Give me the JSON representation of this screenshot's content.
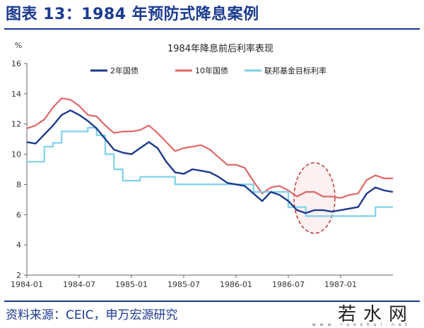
{
  "header": {
    "title": "图表 13：1984 年预防式降息案例"
  },
  "footer": {
    "source": "资料来源：CEIC，申万宏源研究",
    "watermark": "若水网",
    "watermark_sub": "www.ruoshui.net"
  },
  "colors": {
    "us2y": "#1c3a8e",
    "us10y": "#e06767",
    "fed": "#7dd1ea",
    "accent": "#1a3a8f",
    "highlight": "#c0292b"
  },
  "chart_data": {
    "type": "line",
    "title": "1984年降息前后利率表现",
    "ylabel": "%",
    "ylim": [
      2,
      16
    ],
    "yticks": [
      2,
      4,
      6,
      8,
      10,
      12,
      14,
      16
    ],
    "xlim": [
      "1984-01",
      "1987-07"
    ],
    "xticks": [
      "1984-01",
      "1984-07",
      "1985-01",
      "1985-07",
      "1986-01",
      "1986-07",
      "1987-01"
    ],
    "legend_position": "top",
    "grid": false,
    "annotation": {
      "type": "dashed-ellipse",
      "center": [
        "1986-10",
        7.1
      ],
      "note": "highlighted region"
    },
    "series": [
      {
        "name": "2年国债",
        "x": [
          "1984-01",
          "1984-02",
          "1984-03",
          "1984-04",
          "1984-05",
          "1984-06",
          "1984-07",
          "1984-08",
          "1984-09",
          "1984-10",
          "1984-11",
          "1984-12",
          "1985-01",
          "1985-02",
          "1985-03",
          "1985-04",
          "1985-05",
          "1985-06",
          "1985-07",
          "1985-08",
          "1985-09",
          "1985-10",
          "1985-11",
          "1985-12",
          "1986-01",
          "1986-02",
          "1986-03",
          "1986-04",
          "1986-05",
          "1986-06",
          "1986-07",
          "1986-08",
          "1986-09",
          "1986-10",
          "1986-11",
          "1986-12",
          "1987-01",
          "1987-02",
          "1987-03",
          "1987-04",
          "1987-05",
          "1987-06",
          "1987-07"
        ],
        "values": [
          10.8,
          10.7,
          11.3,
          11.9,
          12.6,
          12.9,
          12.6,
          12.2,
          11.7,
          11.0,
          10.3,
          10.1,
          10.0,
          10.4,
          10.8,
          10.4,
          9.5,
          8.8,
          8.7,
          9.0,
          8.9,
          8.8,
          8.5,
          8.1,
          8.0,
          7.9,
          7.4,
          6.9,
          7.5,
          7.3,
          6.9,
          6.3,
          6.1,
          6.3,
          6.3,
          6.2,
          6.3,
          6.4,
          6.5,
          7.4,
          7.8,
          7.6,
          7.5
        ]
      },
      {
        "name": "10年国债",
        "x": [
          "1984-01",
          "1984-02",
          "1984-03",
          "1984-04",
          "1984-05",
          "1984-06",
          "1984-07",
          "1984-08",
          "1984-09",
          "1984-10",
          "1984-11",
          "1984-12",
          "1985-01",
          "1985-02",
          "1985-03",
          "1985-04",
          "1985-05",
          "1985-06",
          "1985-07",
          "1985-08",
          "1985-09",
          "1985-10",
          "1985-11",
          "1985-12",
          "1986-01",
          "1986-02",
          "1986-03",
          "1986-04",
          "1986-05",
          "1986-06",
          "1986-07",
          "1986-08",
          "1986-09",
          "1986-10",
          "1986-11",
          "1986-12",
          "1987-01",
          "1987-02",
          "1987-03",
          "1987-04",
          "1987-05",
          "1987-06",
          "1987-07"
        ],
        "values": [
          11.7,
          11.9,
          12.3,
          13.1,
          13.7,
          13.6,
          13.2,
          12.6,
          12.5,
          11.9,
          11.4,
          11.5,
          11.5,
          11.6,
          11.9,
          11.4,
          10.8,
          10.2,
          10.4,
          10.5,
          10.6,
          10.3,
          9.8,
          9.3,
          9.3,
          9.1,
          8.2,
          7.4,
          7.8,
          7.9,
          7.6,
          7.2,
          7.5,
          7.5,
          7.2,
          7.2,
          7.1,
          7.3,
          7.4,
          8.3,
          8.6,
          8.4,
          8.4
        ]
      },
      {
        "name": "联邦基金目标利率",
        "x": [
          "1984-01",
          "1984-03",
          "1984-04",
          "1984-05",
          "1984-06",
          "1984-08",
          "1984-09",
          "1984-10",
          "1984-11",
          "1984-12",
          "1985-01",
          "1985-02",
          "1985-05",
          "1985-06",
          "1985-08",
          "1985-10",
          "1985-12",
          "1986-01",
          "1986-03",
          "1986-04",
          "1986-07",
          "1986-08",
          "1986-09",
          "1986-12",
          "1987-01",
          "1987-04",
          "1987-05",
          "1987-07"
        ],
        "values": [
          9.5,
          10.5,
          10.75,
          11.5,
          11.5,
          11.75,
          11.25,
          10.0,
          9.0,
          8.25,
          8.25,
          8.5,
          8.5,
          8.0,
          8.0,
          8.0,
          8.0,
          8.0,
          7.5,
          7.5,
          6.5,
          6.5,
          5.9,
          5.9,
          5.9,
          5.9,
          6.5,
          6.5
        ]
      }
    ]
  }
}
